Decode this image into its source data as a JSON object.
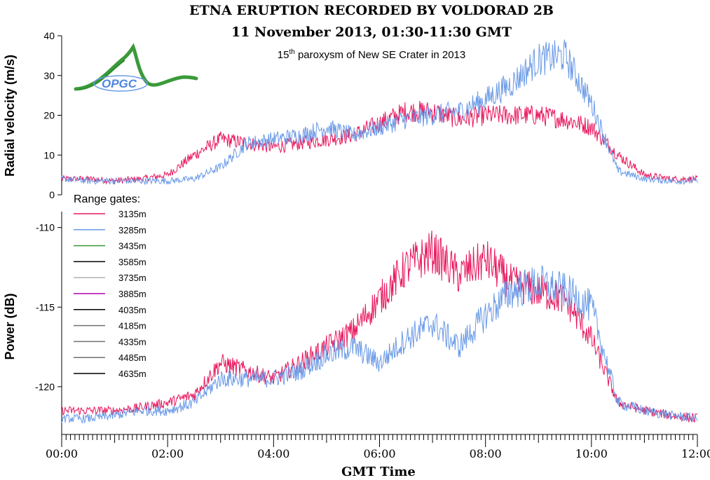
{
  "title_line1": "ETNA ERUPTION RECORDED BY VOLDORAD 2B",
  "title_line2": "11 November 2013, 01:30-11:30 GMT",
  "subtitle": {
    "prefix": "15",
    "sup": "th",
    "rest": " paroxysm of New SE Crater in 2013"
  },
  "logo_text": "OPGC",
  "xlabel": "GMT Time",
  "legend_title": "Range gates:",
  "legend": [
    {
      "name": "3135m",
      "color": "#e8175d"
    },
    {
      "name": "3285m",
      "color": "#6a9ae6"
    },
    {
      "name": "3435m",
      "color": "#3a9a3a"
    },
    {
      "name": "3585m",
      "color": "#000000"
    },
    {
      "name": "3735m",
      "color": "#b0b0b0"
    },
    {
      "name": "3885m",
      "color": "#b000b0"
    },
    {
      "name": "4035m",
      "color": "#000000"
    },
    {
      "name": "4185m",
      "color": "#707070"
    },
    {
      "name": "4335m",
      "color": "#707070"
    },
    {
      "name": "4485m",
      "color": "#707070"
    },
    {
      "name": "4635m",
      "color": "#000000"
    }
  ],
  "chart_data": [
    {
      "type": "line",
      "ylabel": "Radial velocity (m/s)",
      "xlim": [
        "00:00",
        "12:00"
      ],
      "ylim": [
        0,
        40
      ],
      "yticks": [
        0,
        10,
        20,
        30,
        40
      ],
      "xticks": [
        "00:00",
        "02:00",
        "04:00",
        "06:00",
        "08:00",
        "10:00",
        "12:00"
      ],
      "x": [
        "00:00",
        "00:30",
        "01:00",
        "01:30",
        "02:00",
        "02:30",
        "03:00",
        "03:30",
        "04:00",
        "04:30",
        "05:00",
        "05:30",
        "06:00",
        "06:30",
        "07:00",
        "07:30",
        "08:00",
        "08:30",
        "09:00",
        "09:30",
        "10:00",
        "10:30",
        "11:00",
        "11:30",
        "12:00"
      ],
      "series": [
        {
          "name": "3135m",
          "values": [
            4,
            4,
            3.5,
            4,
            5,
            10,
            14,
            13,
            12,
            13,
            14,
            15,
            18,
            21,
            21,
            19,
            20,
            20,
            20,
            19,
            17,
            10,
            5,
            4,
            4
          ]
        },
        {
          "name": "3285m",
          "values": [
            4,
            3.5,
            3.5,
            3.5,
            3.5,
            4,
            7,
            13,
            14,
            15,
            17,
            15,
            17,
            19,
            20,
            21,
            24,
            28,
            34,
            35,
            23,
            6,
            4,
            3.5,
            3.5
          ]
        }
      ]
    },
    {
      "type": "line",
      "ylabel": "Power (dB)",
      "xlim": [
        "00:00",
        "12:00"
      ],
      "ylim": [
        -123,
        -109
      ],
      "yticks": [
        -120,
        -115,
        -110
      ],
      "xticks": [
        "00:00",
        "02:00",
        "04:00",
        "06:00",
        "08:00",
        "10:00",
        "12:00"
      ],
      "x": [
        "00:00",
        "00:30",
        "01:00",
        "01:30",
        "02:00",
        "02:30",
        "03:00",
        "03:30",
        "04:00",
        "04:30",
        "05:00",
        "05:30",
        "06:00",
        "06:30",
        "07:00",
        "07:30",
        "08:00",
        "08:30",
        "09:00",
        "09:30",
        "10:00",
        "10:30",
        "11:00",
        "11:30",
        "12:00"
      ],
      "series": [
        {
          "name": "3135m",
          "values": [
            -121.5,
            -121.5,
            -121.5,
            -121.3,
            -121,
            -120.5,
            -118.5,
            -119,
            -119.5,
            -118.5,
            -117.5,
            -116.5,
            -114.5,
            -112.5,
            -111.5,
            -113,
            -112,
            -113.5,
            -114,
            -114.5,
            -117,
            -121,
            -121.5,
            -121.8,
            -122
          ]
        },
        {
          "name": "3285m",
          "values": [
            -122,
            -122,
            -121.8,
            -121.5,
            -121.5,
            -121,
            -119.5,
            -119.5,
            -119.5,
            -119,
            -118,
            -117.5,
            -118.5,
            -117,
            -116,
            -117.5,
            -115.5,
            -114,
            -113.5,
            -114,
            -115,
            -121,
            -121.5,
            -121.8,
            -122
          ]
        }
      ]
    }
  ]
}
